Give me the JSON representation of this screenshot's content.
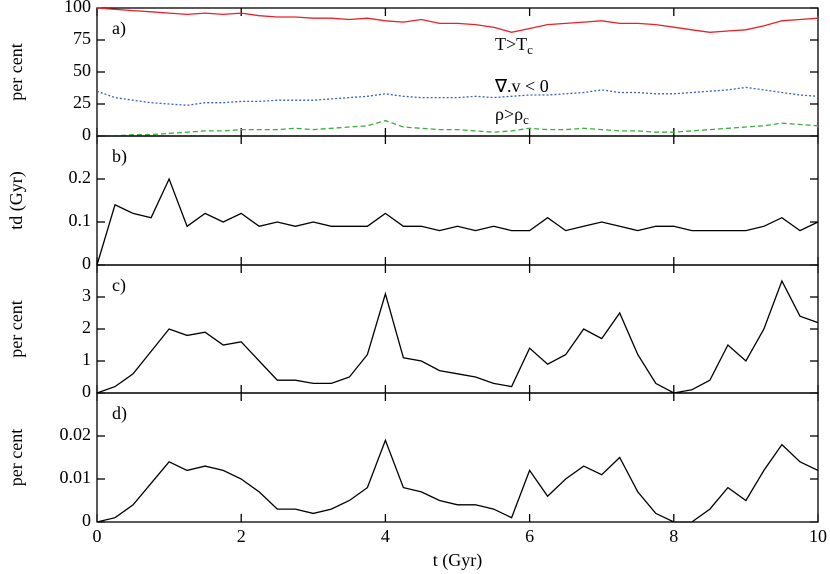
{
  "chart_data": [
    {
      "type": "line",
      "panel_label": "a)",
      "ylabel": "per cent",
      "x": [
        0,
        0.25,
        0.5,
        0.75,
        1,
        1.25,
        1.5,
        1.75,
        2,
        2.25,
        2.5,
        2.75,
        3,
        3.25,
        3.5,
        3.75,
        4,
        4.25,
        4.5,
        4.75,
        5,
        5.25,
        5.5,
        5.75,
        6,
        6.25,
        6.5,
        6.75,
        7,
        7.25,
        7.5,
        7.75,
        8,
        8.25,
        8.5,
        8.75,
        9,
        9.25,
        9.5,
        9.75,
        10
      ],
      "series": [
        {
          "name": "T>Tc",
          "color": "#e8212a",
          "style": "solid",
          "values": [
            100,
            99,
            98,
            97,
            96,
            95,
            96,
            95,
            96,
            94,
            93,
            93,
            92,
            92,
            91,
            92,
            90,
            89,
            91,
            88,
            88,
            87,
            85,
            81,
            84,
            87,
            88,
            89,
            90,
            88,
            88,
            87,
            85,
            83,
            81,
            82,
            83,
            86,
            90,
            91,
            92
          ]
        },
        {
          "name": "∇.v < 0",
          "color": "#3b5fc0",
          "style": "dotted",
          "values": [
            35,
            30,
            28,
            26,
            25,
            24,
            26,
            26,
            27,
            27,
            28,
            28,
            28,
            29,
            30,
            31,
            33,
            31,
            30,
            30,
            30,
            31,
            30,
            31,
            32,
            32,
            33,
            34,
            36,
            34,
            34,
            33,
            33,
            34,
            35,
            36,
            38,
            36,
            34,
            32,
            31
          ]
        },
        {
          "name": "ρ>ρc",
          "color": "#3dae3d",
          "style": "dashed",
          "values": [
            0,
            0,
            1,
            1,
            2,
            3,
            4,
            4,
            5,
            5,
            5,
            6,
            5,
            6,
            7,
            8,
            12,
            7,
            6,
            5,
            5,
            4,
            3,
            4,
            6,
            5,
            5,
            6,
            5,
            4,
            4,
            3,
            3,
            4,
            5,
            6,
            7,
            8,
            10,
            9,
            8
          ]
        }
      ],
      "annotations": [
        {
          "text": "T>T",
          "sub": "c"
        },
        {
          "text": "∇.v < 0",
          "sub": null
        },
        {
          "text": "ρ>ρ",
          "sub": "c"
        }
      ],
      "xlim": [
        0,
        10
      ],
      "xticks": [
        0,
        2,
        4,
        6,
        8,
        10
      ],
      "ylim": [
        0,
        100
      ],
      "yticks": [
        0,
        25,
        50,
        75,
        100
      ]
    },
    {
      "type": "line",
      "panel_label": "b)",
      "ylabel": "td (Gyr)",
      "x": [
        0,
        0.25,
        0.5,
        0.75,
        1,
        1.25,
        1.5,
        1.75,
        2,
        2.25,
        2.5,
        2.75,
        3,
        3.25,
        3.5,
        3.75,
        4,
        4.25,
        4.5,
        4.75,
        5,
        5.25,
        5.5,
        5.75,
        6,
        6.25,
        6.5,
        6.75,
        7,
        7.25,
        7.5,
        7.75,
        8,
        8.25,
        8.5,
        8.75,
        9,
        9.25,
        9.5,
        9.75,
        10
      ],
      "series": [
        {
          "name": null,
          "color": "#000000",
          "style": "solid",
          "values": [
            0,
            0.14,
            0.12,
            0.11,
            0.2,
            0.09,
            0.12,
            0.1,
            0.12,
            0.09,
            0.1,
            0.09,
            0.1,
            0.09,
            0.09,
            0.09,
            0.12,
            0.09,
            0.09,
            0.08,
            0.09,
            0.08,
            0.09,
            0.08,
            0.08,
            0.11,
            0.08,
            0.09,
            0.1,
            0.09,
            0.08,
            0.09,
            0.09,
            0.08,
            0.08,
            0.08,
            0.08,
            0.09,
            0.11,
            0.08,
            0.1
          ]
        }
      ],
      "xlim": [
        0,
        10
      ],
      "xticks": [
        0,
        2,
        4,
        6,
        8,
        10
      ],
      "ylim": [
        0,
        0.3
      ],
      "yticks": [
        0,
        0.1,
        0.2
      ]
    },
    {
      "type": "line",
      "panel_label": "c)",
      "ylabel": "per cent",
      "x": [
        0,
        0.25,
        0.5,
        0.75,
        1,
        1.25,
        1.5,
        1.75,
        2,
        2.25,
        2.5,
        2.75,
        3,
        3.25,
        3.5,
        3.75,
        4,
        4.25,
        4.5,
        4.75,
        5,
        5.25,
        5.5,
        5.75,
        6,
        6.25,
        6.5,
        6.75,
        7,
        7.25,
        7.5,
        7.75,
        8,
        8.25,
        8.5,
        8.75,
        9,
        9.25,
        9.5,
        9.75,
        10
      ],
      "series": [
        {
          "name": null,
          "color": "#000000",
          "style": "solid",
          "values": [
            0,
            0.2,
            0.6,
            1.3,
            2.0,
            1.8,
            1.9,
            1.5,
            1.6,
            1.0,
            0.4,
            0.4,
            0.3,
            0.3,
            0.5,
            1.2,
            3.1,
            1.1,
            1.0,
            0.7,
            0.6,
            0.5,
            0.3,
            0.2,
            1.4,
            0.9,
            1.2,
            2.0,
            1.7,
            2.5,
            1.2,
            0.3,
            0,
            0.1,
            0.4,
            1.5,
            1.0,
            2.0,
            3.5,
            2.4,
            2.2
          ]
        }
      ],
      "xlim": [
        0,
        10
      ],
      "xticks": [
        0,
        2,
        4,
        6,
        8,
        10
      ],
      "ylim": [
        0,
        4
      ],
      "yticks": [
        0,
        1,
        2,
        3
      ]
    },
    {
      "type": "line",
      "panel_label": "d)",
      "ylabel": "per cent",
      "xlabel": "t (Gyr)",
      "x": [
        0,
        0.25,
        0.5,
        0.75,
        1,
        1.25,
        1.5,
        1.75,
        2,
        2.25,
        2.5,
        2.75,
        3,
        3.25,
        3.5,
        3.75,
        4,
        4.25,
        4.5,
        4.75,
        5,
        5.25,
        5.5,
        5.75,
        6,
        6.25,
        6.5,
        6.75,
        7,
        7.25,
        7.5,
        7.75,
        8,
        8.25,
        8.5,
        8.75,
        9,
        9.25,
        9.5,
        9.75,
        10
      ],
      "series": [
        {
          "name": null,
          "color": "#000000",
          "style": "solid",
          "values": [
            0,
            0.001,
            0.004,
            0.009,
            0.014,
            0.012,
            0.013,
            0.012,
            0.01,
            0.007,
            0.003,
            0.003,
            0.002,
            0.003,
            0.005,
            0.008,
            0.019,
            0.008,
            0.007,
            0.005,
            0.004,
            0.004,
            0.003,
            0.001,
            0.012,
            0.006,
            0.01,
            0.013,
            0.011,
            0.015,
            0.007,
            0.002,
            0,
            0,
            0.003,
            0.008,
            0.005,
            0.012,
            0.018,
            0.014,
            0.012
          ]
        }
      ],
      "xlim": [
        0,
        10
      ],
      "xticks": [
        0,
        2,
        4,
        6,
        8,
        10
      ],
      "ylim": [
        0,
        0.03
      ],
      "yticks": [
        0,
        0.01,
        0.02
      ]
    }
  ]
}
